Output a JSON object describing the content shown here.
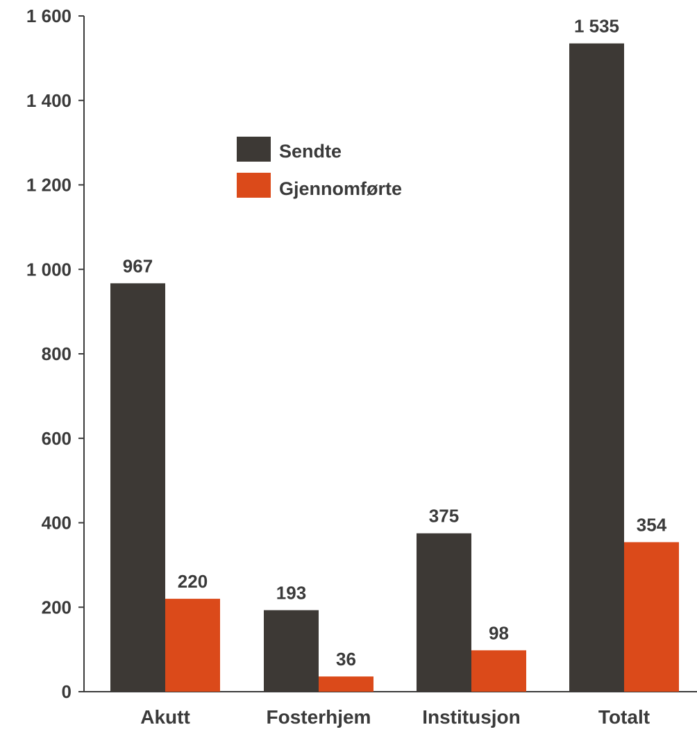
{
  "chart_data": {
    "type": "bar",
    "categories": [
      "Akutt",
      "Fosterhjem",
      "Institusjon",
      "Totalt"
    ],
    "series": [
      {
        "name": "Sendte",
        "values": [
          967,
          193,
          375,
          1535
        ],
        "labels": [
          "967",
          "193",
          "375",
          "1 535"
        ],
        "color": "#3d3935"
      },
      {
        "name": "Gjennomførte",
        "values": [
          220,
          36,
          98,
          354
        ],
        "labels": [
          "220",
          "36",
          "98",
          "354"
        ],
        "color": "#db4a1a"
      }
    ],
    "y_ticks": [
      0,
      200,
      400,
      600,
      800,
      1000,
      1200,
      1400,
      1600
    ],
    "y_tick_labels": [
      "0",
      "200",
      "400",
      "600",
      "800",
      "1 000",
      "1 200",
      "1 400",
      "1 600"
    ],
    "ylim": [
      0,
      1600
    ],
    "grid": false,
    "legend_position": "upper-left-inside"
  }
}
